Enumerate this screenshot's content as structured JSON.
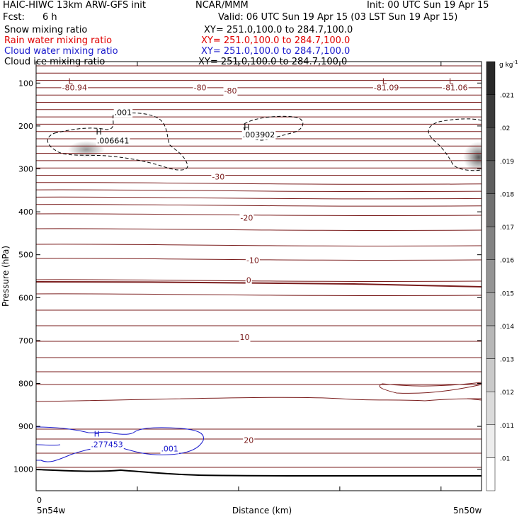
{
  "header": {
    "title_left": "HAIC-HIWC 13km ARW-GFS init",
    "title_center": "NCAR/MMM",
    "init": "Init: 00 UTC Sun 19 Apr 15",
    "fcst_label": "Fcst:",
    "fcst_value": "6 h",
    "valid": "Valid: 06 UTC Sun 19 Apr 15 (03 LST Sun 19 Apr 15)"
  },
  "fields": [
    {
      "name": "Snow mixing ratio",
      "xy": "XY= 251.0,100.0 to 284.7,100.0",
      "color": "#000000"
    },
    {
      "name": "Rain water mixing ratio",
      "xy": "XY= 251.0,100.0 to 284.7,100.0",
      "color": "#e00000"
    },
    {
      "name": "Cloud water mixing ratio",
      "xy": "XY= 251.0,100.0 to 284.7,100.0",
      "color": "#1a1acc"
    },
    {
      "name": "Cloud ice mixing ratio",
      "xy": "XY= 251.0,100.0 to 284.7,100.0",
      "color": "#000000"
    }
  ],
  "colorbar": {
    "units": "g kg",
    "units_exp": "-1",
    "levels": [
      ".01",
      ".011",
      ".012",
      ".013",
      ".014",
      ".015",
      ".016",
      ".017",
      ".018",
      ".019",
      ".02",
      ".021"
    ]
  },
  "chart_data": {
    "type": "contour",
    "xlabel": "Distance (km)",
    "ylabel": "Pressure (hPa)",
    "x_tick_labels": [
      "0"
    ],
    "x_range_km": [
      0,
      2200
    ],
    "x_end_labels": [
      "5n54w",
      "5n50w"
    ],
    "y_ticks": [
      100,
      200,
      300,
      400,
      500,
      600,
      700,
      800,
      900,
      1000
    ],
    "ylim": [
      1050,
      50
    ],
    "temperature_contour_labels": [
      {
        "text": "-80.94",
        "x_km": 190,
        "p": 110
      },
      {
        "text": "-80",
        "x_km": 810,
        "p": 110
      },
      {
        "text": "-80",
        "x_km": 960,
        "p": 118
      },
      {
        "text": "-81.09",
        "x_km": 1730,
        "p": 110
      },
      {
        "text": "-81.06",
        "x_km": 2070,
        "p": 110
      },
      {
        "text": "-30",
        "x_km": 900,
        "p": 318
      },
      {
        "text": "-20",
        "x_km": 1040,
        "p": 414
      },
      {
        "text": "-10",
        "x_km": 1070,
        "p": 513
      },
      {
        "text": "0",
        "x_km": 1050,
        "p": 559
      },
      {
        "text": "10",
        "x_km": 1030,
        "p": 692
      },
      {
        "text": "20",
        "x_km": 1050,
        "p": 932
      }
    ],
    "extrema_labels": [
      {
        "text": "L",
        "x_km": 170,
        "p": 95
      },
      {
        "text": "L",
        "x_km": 1720,
        "p": 95
      },
      {
        "text": "L",
        "x_km": 2050,
        "p": 95
      },
      {
        "text": "H",
        "x_km": 310,
        "p": 213
      },
      {
        "text": "H",
        "x_km": 1040,
        "p": 203
      },
      {
        "text": "H",
        "x_km": 300,
        "p": 917
      }
    ],
    "cloud_ice_labels": [
      {
        "text": ".001",
        "x_km": 430,
        "p": 168
      },
      {
        "text": ".006641",
        "x_km": 380,
        "p": 234
      },
      {
        "text": ".003902",
        "x_km": 1100,
        "p": 220
      }
    ],
    "cloud_water_labels": [
      {
        "text": ".277453",
        "x_km": 350,
        "p": 942
      },
      {
        "text": ".001",
        "x_km": 660,
        "p": 952
      }
    ]
  }
}
